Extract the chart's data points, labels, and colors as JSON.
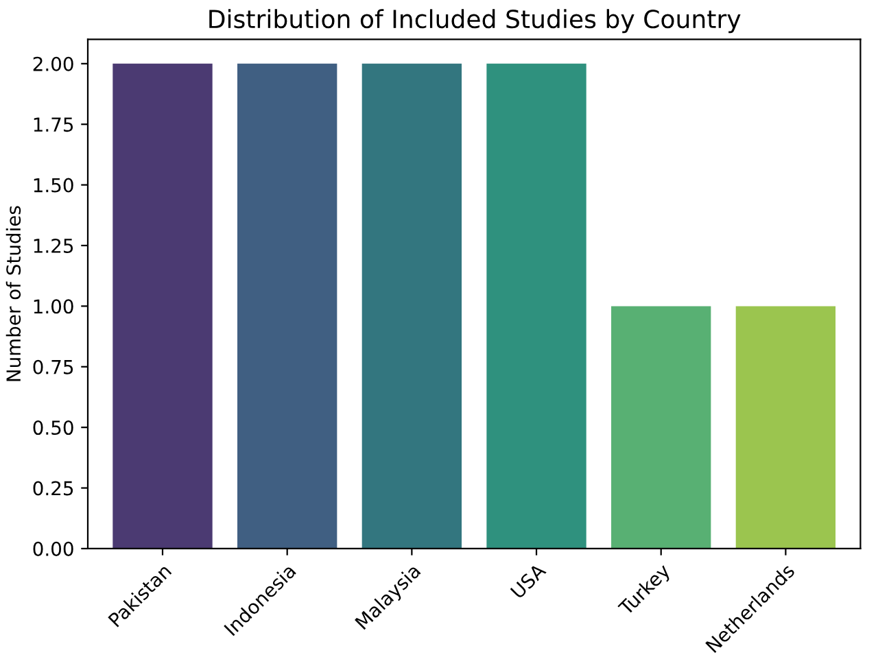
{
  "chart_data": {
    "type": "bar",
    "title": "Distribution of Included Studies by Country",
    "ylabel": "Number of Studies",
    "categories": [
      "Pakistan",
      "Indonesia",
      "Malaysia",
      "USA",
      "Turkey",
      "Netherlands"
    ],
    "values": [
      2,
      2,
      2,
      2,
      1,
      1
    ],
    "colors": [
      "#4b3a72",
      "#405f82",
      "#33767f",
      "#2f917e",
      "#58b073",
      "#9bc54f"
    ],
    "ylim": [
      0,
      2.1
    ],
    "yticks": [
      {
        "value": 0,
        "label": "0.00"
      },
      {
        "value": 0.25,
        "label": "0.25"
      },
      {
        "value": 0.5,
        "label": "0.50"
      },
      {
        "value": 0.75,
        "label": "0.75"
      },
      {
        "value": 1,
        "label": "1.00"
      },
      {
        "value": 1.25,
        "label": "1.25"
      },
      {
        "value": 1.5,
        "label": "1.50"
      },
      {
        "value": 1.75,
        "label": "1.75"
      },
      {
        "value": 2,
        "label": "2.00"
      }
    ],
    "grid": false
  }
}
